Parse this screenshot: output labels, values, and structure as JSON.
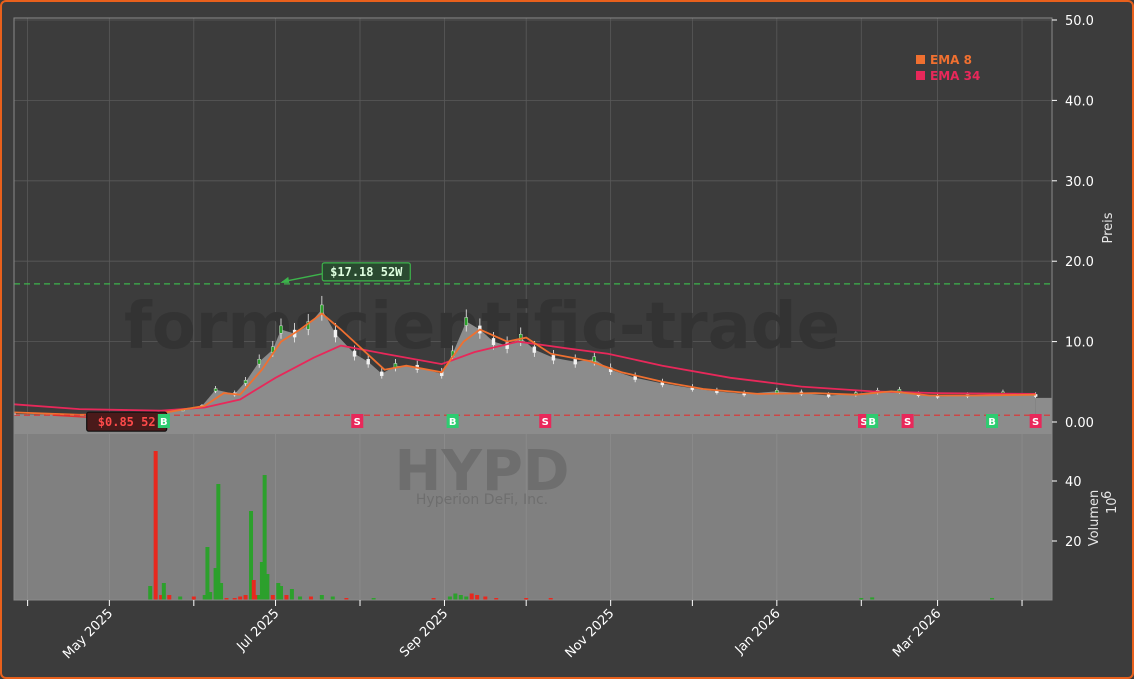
{
  "chart_data": {
    "type": "candlestick",
    "ticker": "HYPD",
    "company": "Hyperion DeFi, Inc.",
    "watermark": "formscientific-trade",
    "colors": {
      "background": "#3c3c3c",
      "frame": "#e8601c",
      "ema8": "#f07030",
      "ema34": "#e8285a",
      "up": "#2ca02c",
      "down": "#e8281e",
      "buy": "#2ecc71",
      "sell": "#e8285a",
      "high_line": "#3cb44b",
      "low_line": "#e03030"
    },
    "price_axis": {
      "label": "Preis",
      "ticks": [
        "0.00",
        "10.0",
        "20.0",
        "30.0",
        "40.0",
        "50.0"
      ],
      "ylim": [
        0,
        50
      ]
    },
    "volume_axis": {
      "label": "Volumen",
      "exponent": "10",
      "exponent_power": "6",
      "ticks": [
        "20",
        "40"
      ],
      "ylim": [
        0,
        50
      ]
    },
    "x_ticks": [
      "May 2025",
      "Jul 2025",
      "Sep 2025",
      "Nov 2025",
      "Jan 2026",
      "Mar 2026"
    ],
    "x_tick_dates": [
      "2025-05-01",
      "2025-07-01",
      "2025-09-01",
      "2025-11-01",
      "2026-01-01",
      "2026-03-01"
    ],
    "x_range": [
      "2025-03-27",
      "2026-04-12"
    ],
    "legend": [
      {
        "label": "EMA 8",
        "color": "#f07030"
      },
      {
        "label": "EMA 34",
        "color": "#e8285a"
      }
    ],
    "annotations": {
      "high_52w": {
        "label": "$17.18 52W",
        "value": 17.18,
        "date": "2025-07-02"
      },
      "low_52w": {
        "label": "$0.85 52",
        "value": 0.85,
        "date": "2025-04-08"
      }
    },
    "signals": [
      {
        "type": "B",
        "date": "2025-05-21"
      },
      {
        "type": "S",
        "date": "2025-07-31"
      },
      {
        "type": "B",
        "date": "2025-09-04"
      },
      {
        "type": "S",
        "date": "2025-10-08"
      },
      {
        "type": "S",
        "date": "2026-02-02"
      },
      {
        "type": "B",
        "date": "2026-02-05"
      },
      {
        "type": "S",
        "date": "2026-02-18"
      },
      {
        "type": "B",
        "date": "2026-03-21"
      },
      {
        "type": "S",
        "date": "2026-04-06"
      }
    ],
    "price_series": [
      {
        "date": "2025-03-27",
        "close": 1.0
      },
      {
        "date": "2025-04-15",
        "close": 0.9
      },
      {
        "date": "2025-05-15",
        "close": 0.9
      },
      {
        "date": "2025-05-19",
        "close": 1.2
      },
      {
        "date": "2025-05-28",
        "close": 1.5
      },
      {
        "date": "2025-06-04",
        "close": 2.0
      },
      {
        "date": "2025-06-09",
        "close": 4.0
      },
      {
        "date": "2025-06-16",
        "close": 3.5
      },
      {
        "date": "2025-06-20",
        "close": 5.0
      },
      {
        "date": "2025-06-25",
        "close": 7.5
      },
      {
        "date": "2025-06-30",
        "close": 9.0
      },
      {
        "date": "2025-07-03",
        "close": 11.5
      },
      {
        "date": "2025-07-08",
        "close": 11.0
      },
      {
        "date": "2025-07-13",
        "close": 12.0
      },
      {
        "date": "2025-07-18",
        "close": 14.0
      },
      {
        "date": "2025-07-23",
        "close": 11.0
      },
      {
        "date": "2025-07-30",
        "close": 8.5
      },
      {
        "date": "2025-08-04",
        "close": 7.5
      },
      {
        "date": "2025-08-09",
        "close": 6.0
      },
      {
        "date": "2025-08-14",
        "close": 7.0
      },
      {
        "date": "2025-08-22",
        "close": 6.8
      },
      {
        "date": "2025-08-31",
        "close": 6.0
      },
      {
        "date": "2025-09-04",
        "close": 8.5
      },
      {
        "date": "2025-09-09",
        "close": 12.5
      },
      {
        "date": "2025-09-14",
        "close": 11.5
      },
      {
        "date": "2025-09-19",
        "close": 10.0
      },
      {
        "date": "2025-09-24",
        "close": 9.5
      },
      {
        "date": "2025-09-29",
        "close": 10.5
      },
      {
        "date": "2025-10-04",
        "close": 9.0
      },
      {
        "date": "2025-10-11",
        "close": 8.0
      },
      {
        "date": "2025-10-19",
        "close": 7.5
      },
      {
        "date": "2025-10-26",
        "close": 7.8
      },
      {
        "date": "2025-11-01",
        "close": 6.5
      },
      {
        "date": "2025-11-10",
        "close": 5.5
      },
      {
        "date": "2025-11-20",
        "close": 4.8
      },
      {
        "date": "2025-12-01",
        "close": 4.2
      },
      {
        "date": "2025-12-10",
        "close": 3.8
      },
      {
        "date": "2025-12-20",
        "close": 3.5
      },
      {
        "date": "2026-01-01",
        "close": 3.8
      },
      {
        "date": "2026-01-10",
        "close": 3.6
      },
      {
        "date": "2026-01-20",
        "close": 3.3
      },
      {
        "date": "2026-01-30",
        "close": 3.5
      },
      {
        "date": "2026-02-07",
        "close": 3.8
      },
      {
        "date": "2026-02-15",
        "close": 3.9
      },
      {
        "date": "2026-02-22",
        "close": 3.4
      },
      {
        "date": "2026-03-01",
        "close": 3.2
      },
      {
        "date": "2026-03-12",
        "close": 3.3
      },
      {
        "date": "2026-03-25",
        "close": 3.6
      },
      {
        "date": "2026-04-06",
        "close": 3.3
      }
    ],
    "ema8": [
      {
        "date": "2025-03-27",
        "value": 1.2
      },
      {
        "date": "2025-04-20",
        "value": 0.9
      },
      {
        "date": "2025-05-20",
        "value": 1.1
      },
      {
        "date": "2025-06-05",
        "value": 2.0
      },
      {
        "date": "2025-06-12",
        "value": 3.6
      },
      {
        "date": "2025-06-18",
        "value": 3.4
      },
      {
        "date": "2025-06-26",
        "value": 6.5
      },
      {
        "date": "2025-07-03",
        "value": 10.0
      },
      {
        "date": "2025-07-10",
        "value": 11.5
      },
      {
        "date": "2025-07-18",
        "value": 13.5
      },
      {
        "date": "2025-07-25",
        "value": 11.5
      },
      {
        "date": "2025-08-02",
        "value": 9.0
      },
      {
        "date": "2025-08-10",
        "value": 6.5
      },
      {
        "date": "2025-08-18",
        "value": 7.0
      },
      {
        "date": "2025-08-31",
        "value": 6.2
      },
      {
        "date": "2025-09-08",
        "value": 10.0
      },
      {
        "date": "2025-09-14",
        "value": 11.5
      },
      {
        "date": "2025-09-24",
        "value": 10.0
      },
      {
        "date": "2025-10-01",
        "value": 10.5
      },
      {
        "date": "2025-10-10",
        "value": 8.5
      },
      {
        "date": "2025-10-24",
        "value": 7.6
      },
      {
        "date": "2025-11-05",
        "value": 6.2
      },
      {
        "date": "2025-11-20",
        "value": 5.0
      },
      {
        "date": "2025-12-05",
        "value": 4.1
      },
      {
        "date": "2025-12-25",
        "value": 3.5
      },
      {
        "date": "2026-01-15",
        "value": 3.6
      },
      {
        "date": "2026-01-30",
        "value": 3.4
      },
      {
        "date": "2026-02-12",
        "value": 3.8
      },
      {
        "date": "2026-02-26",
        "value": 3.3
      },
      {
        "date": "2026-03-15",
        "value": 3.3
      },
      {
        "date": "2026-04-06",
        "value": 3.4
      }
    ],
    "ema34": [
      {
        "date": "2025-03-27",
        "value": 2.2
      },
      {
        "date": "2025-04-20",
        "value": 1.6
      },
      {
        "date": "2025-05-20",
        "value": 1.4
      },
      {
        "date": "2025-06-05",
        "value": 1.8
      },
      {
        "date": "2025-06-18",
        "value": 2.8
      },
      {
        "date": "2025-07-01",
        "value": 5.5
      },
      {
        "date": "2025-07-15",
        "value": 8.0
      },
      {
        "date": "2025-07-25",
        "value": 9.5
      },
      {
        "date": "2025-08-10",
        "value": 8.5
      },
      {
        "date": "2025-08-31",
        "value": 7.2
      },
      {
        "date": "2025-09-12",
        "value": 8.7
      },
      {
        "date": "2025-09-28",
        "value": 10.0
      },
      {
        "date": "2025-10-15",
        "value": 9.2
      },
      {
        "date": "2025-10-31",
        "value": 8.5
      },
      {
        "date": "2025-11-20",
        "value": 7.0
      },
      {
        "date": "2025-12-15",
        "value": 5.5
      },
      {
        "date": "2026-01-10",
        "value": 4.4
      },
      {
        "date": "2026-02-05",
        "value": 3.8
      },
      {
        "date": "2026-03-01",
        "value": 3.6
      },
      {
        "date": "2026-04-06",
        "value": 3.5
      }
    ],
    "volume_series": [
      {
        "date": "2025-05-16",
        "value": 5,
        "dir": "up"
      },
      {
        "date": "2025-05-18",
        "value": 50,
        "dir": "down"
      },
      {
        "date": "2025-05-20",
        "value": 2,
        "dir": "down"
      },
      {
        "date": "2025-05-21",
        "value": 6,
        "dir": "up"
      },
      {
        "date": "2025-05-23",
        "value": 2,
        "dir": "down"
      },
      {
        "date": "2025-05-27",
        "value": 1.5,
        "dir": "up"
      },
      {
        "date": "2025-06-01",
        "value": 1.5,
        "dir": "down"
      },
      {
        "date": "2025-06-05",
        "value": 2,
        "dir": "up"
      },
      {
        "date": "2025-06-06",
        "value": 18,
        "dir": "up"
      },
      {
        "date": "2025-06-07",
        "value": 3,
        "dir": "up"
      },
      {
        "date": "2025-06-09",
        "value": 11,
        "dir": "up"
      },
      {
        "date": "2025-06-10",
        "value": 39,
        "dir": "up"
      },
      {
        "date": "2025-06-11",
        "value": 6,
        "dir": "up"
      },
      {
        "date": "2025-06-13",
        "value": 1,
        "dir": "down"
      },
      {
        "date": "2025-06-16",
        "value": 1,
        "dir": "down"
      },
      {
        "date": "2025-06-18",
        "value": 1.5,
        "dir": "down"
      },
      {
        "date": "2025-06-20",
        "value": 2,
        "dir": "down"
      },
      {
        "date": "2025-06-22",
        "value": 30,
        "dir": "up"
      },
      {
        "date": "2025-06-23",
        "value": 7,
        "dir": "down"
      },
      {
        "date": "2025-06-24",
        "value": 2,
        "dir": "down"
      },
      {
        "date": "2025-06-25",
        "value": 2,
        "dir": "up"
      },
      {
        "date": "2025-06-26",
        "value": 13,
        "dir": "up"
      },
      {
        "date": "2025-06-27",
        "value": 42,
        "dir": "up"
      },
      {
        "date": "2025-06-28",
        "value": 9,
        "dir": "up"
      },
      {
        "date": "2025-06-30",
        "value": 2,
        "dir": "down"
      },
      {
        "date": "2025-07-02",
        "value": 6,
        "dir": "up"
      },
      {
        "date": "2025-07-03",
        "value": 5,
        "dir": "up"
      },
      {
        "date": "2025-07-05",
        "value": 2,
        "dir": "down"
      },
      {
        "date": "2025-07-07",
        "value": 4,
        "dir": "up"
      },
      {
        "date": "2025-07-10",
        "value": 1.5,
        "dir": "up"
      },
      {
        "date": "2025-07-14",
        "value": 1.5,
        "dir": "down"
      },
      {
        "date": "2025-07-18",
        "value": 2,
        "dir": "up"
      },
      {
        "date": "2025-07-22",
        "value": 1.5,
        "dir": "up"
      },
      {
        "date": "2025-07-27",
        "value": 1,
        "dir": "down"
      },
      {
        "date": "2025-08-06",
        "value": 1,
        "dir": "up"
      },
      {
        "date": "2025-08-28",
        "value": 1,
        "dir": "down"
      },
      {
        "date": "2025-09-03",
        "value": 1.5,
        "dir": "up"
      },
      {
        "date": "2025-09-05",
        "value": 2.5,
        "dir": "up"
      },
      {
        "date": "2025-09-07",
        "value": 2,
        "dir": "up"
      },
      {
        "date": "2025-09-09",
        "value": 1.5,
        "dir": "up"
      },
      {
        "date": "2025-09-11",
        "value": 2.5,
        "dir": "down"
      },
      {
        "date": "2025-09-13",
        "value": 2,
        "dir": "down"
      },
      {
        "date": "2025-09-16",
        "value": 1.5,
        "dir": "down"
      },
      {
        "date": "2025-09-20",
        "value": 1,
        "dir": "down"
      },
      {
        "date": "2025-10-01",
        "value": 1,
        "dir": "down"
      },
      {
        "date": "2025-10-10",
        "value": 1,
        "dir": "down"
      },
      {
        "date": "2026-02-01",
        "value": 1,
        "dir": "up"
      },
      {
        "date": "2026-02-05",
        "value": 1.2,
        "dir": "up"
      },
      {
        "date": "2026-03-21",
        "value": 1,
        "dir": "up"
      }
    ]
  }
}
